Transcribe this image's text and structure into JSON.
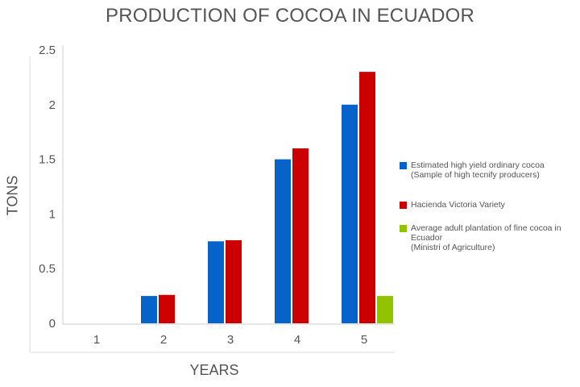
{
  "chart_data": {
    "type": "bar",
    "title": "PRODUCTION OF COCOA IN ECUADOR",
    "xlabel": "YEARS",
    "ylabel": "TONS",
    "categories": [
      "1",
      "2",
      "3",
      "4",
      "5"
    ],
    "yticks": [
      "0",
      "0.5",
      "1",
      "1.5",
      "2",
      "2.5"
    ],
    "ylim": [
      0,
      2.5
    ],
    "grid": false,
    "legend_position": "right",
    "series": [
      {
        "name": "Estimated high yield ordinary cocoa",
        "note": "(Sample of high tecnify producers)",
        "color": "#0563C9",
        "values": [
          0,
          0.25,
          0.75,
          1.5,
          2.0
        ]
      },
      {
        "name": "Hacienda Victoria Variety",
        "note": "",
        "color": "#CC0000",
        "values": [
          0,
          0.26,
          0.76,
          1.6,
          2.3
        ]
      },
      {
        "name": "Average adult plantation of fine cocoa in Ecuador",
        "note": "(Ministri of Agriculture)",
        "color": "#92C300",
        "values": [
          0,
          0,
          0,
          0,
          0.25
        ]
      }
    ]
  }
}
